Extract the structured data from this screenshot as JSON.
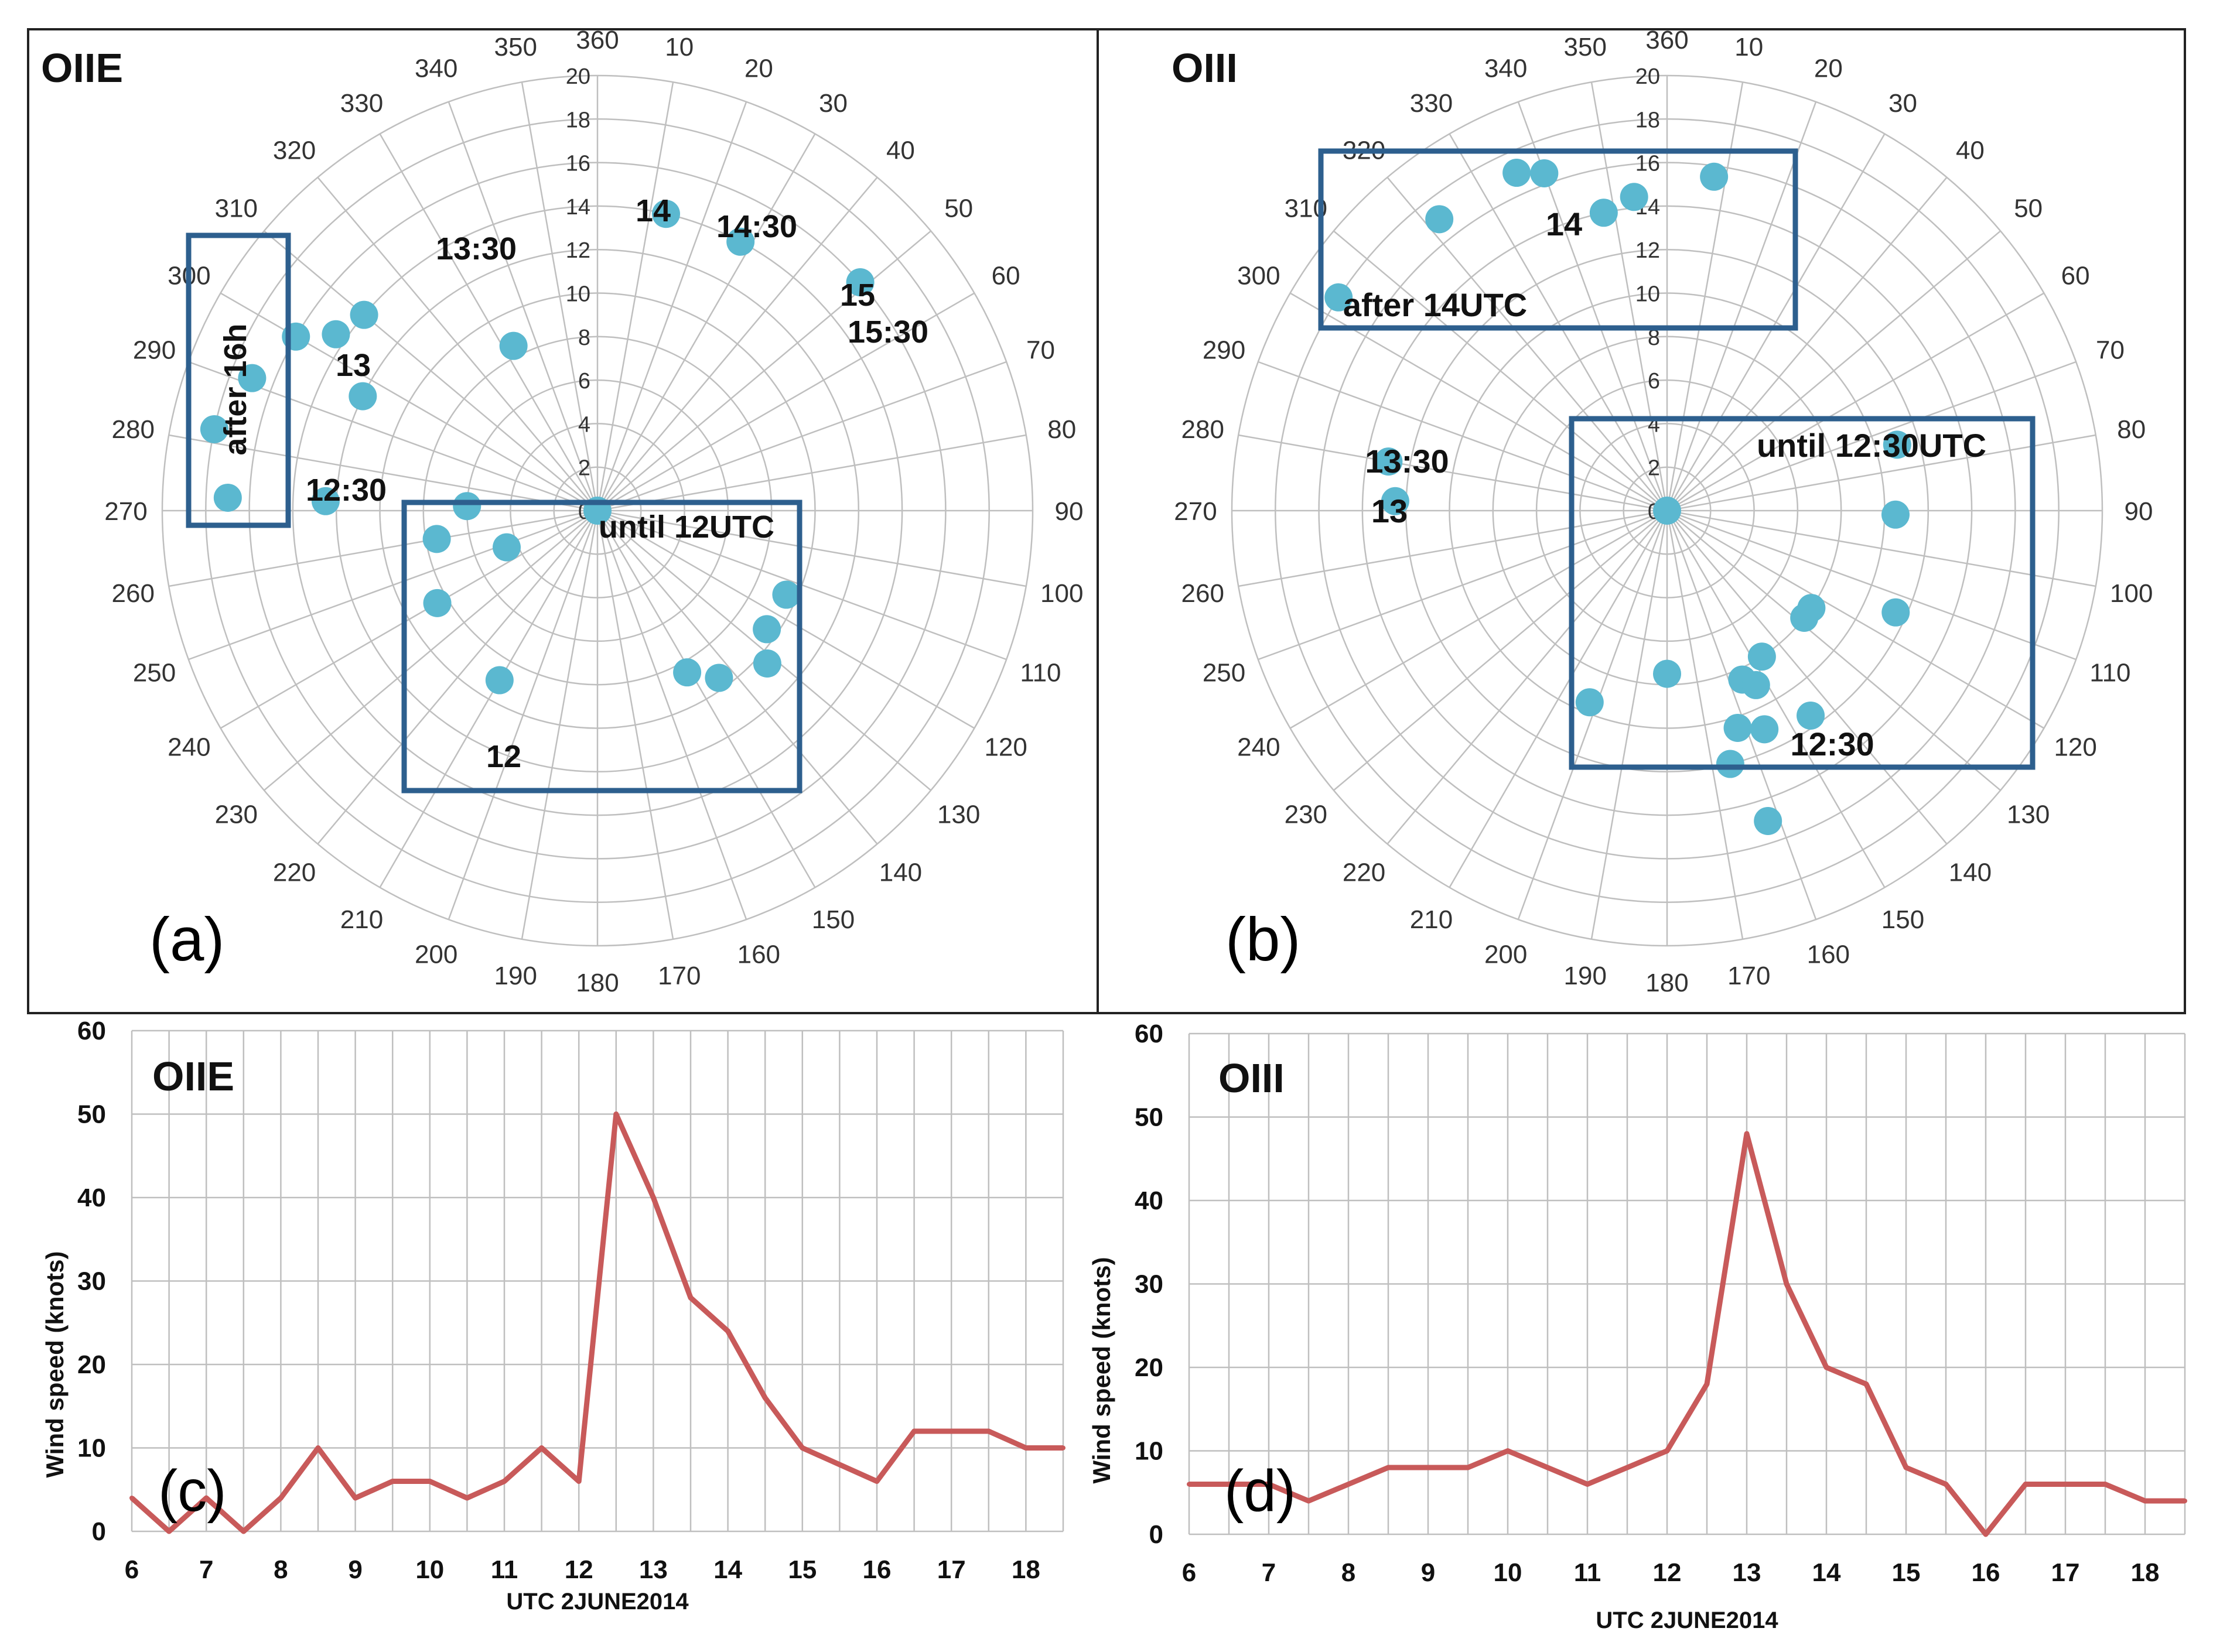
{
  "chart_data": [
    {
      "id": "a",
      "type": "scatter",
      "coordinate_system": "polar",
      "title": "OIIE",
      "panel_label": "(a)",
      "angle_ticks": [
        "360",
        "10",
        "20",
        "30",
        "40",
        "50",
        "60",
        "70",
        "80",
        "90",
        "100",
        "110",
        "120",
        "130",
        "140",
        "150",
        "160",
        "170",
        "180",
        "190",
        "200",
        "210",
        "220",
        "230",
        "240",
        "250",
        "260",
        "270",
        "280",
        "290",
        "300",
        "310",
        "320",
        "330",
        "340",
        "350"
      ],
      "radius_ticks": [
        "0",
        "2",
        "4",
        "6",
        "8",
        "10",
        "12",
        "14",
        "16",
        "18",
        "20"
      ],
      "rmax": 20,
      "points": [
        {
          "dir": 0,
          "speed": 0
        },
        {
          "dir": 13,
          "speed": 14
        },
        {
          "dir": 28,
          "speed": 14
        },
        {
          "dir": 49,
          "speed": 16
        },
        {
          "dir": 310,
          "speed": 14
        },
        {
          "dir": 300,
          "speed": 16
        },
        {
          "dir": 291,
          "speed": 17
        },
        {
          "dir": 282,
          "speed": 18
        },
        {
          "dir": 272,
          "speed": 17
        },
        {
          "dir": 304,
          "speed": 14.5
        },
        {
          "dir": 296,
          "speed": 12
        },
        {
          "dir": 272,
          "speed": 12.5
        },
        {
          "dir": 272,
          "speed": 6
        },
        {
          "dir": 260,
          "speed": 7.5
        },
        {
          "dir": 248,
          "speed": 4.5
        },
        {
          "dir": 240,
          "speed": 8.5
        },
        {
          "dir": 210,
          "speed": 9
        },
        {
          "dir": 125,
          "speed": 9.5
        },
        {
          "dir": 114,
          "speed": 9.5
        },
        {
          "dir": 132,
          "speed": 10.5
        },
        {
          "dir": 144,
          "speed": 9.5
        },
        {
          "dir": 151,
          "speed": 8.5
        },
        {
          "dir": 333,
          "speed": 8.5
        }
      ],
      "annotations": [
        "14",
        "14:30",
        "15",
        "15:30",
        "13:30",
        "13",
        "12:30",
        "after 16h",
        "until 12UTC",
        "12"
      ],
      "boxes": [
        {
          "label": "after 16h",
          "dir_range": [
            270,
            310
          ]
        },
        {
          "label": "until 12UTC",
          "dir_range": [
            100,
            270
          ]
        }
      ]
    },
    {
      "id": "b",
      "type": "scatter",
      "coordinate_system": "polar",
      "title": "OIII",
      "panel_label": "(b)",
      "angle_ticks": [
        "360",
        "10",
        "20",
        "30",
        "40",
        "50",
        "60",
        "70",
        "80",
        "90",
        "100",
        "110",
        "120",
        "130",
        "140",
        "150",
        "160",
        "170",
        "180",
        "190",
        "200",
        "210",
        "220",
        "230",
        "240",
        "250",
        "260",
        "270",
        "280",
        "290",
        "300",
        "310",
        "320",
        "330",
        "340",
        "350"
      ],
      "radius_ticks": [
        "0",
        "2",
        "4",
        "6",
        "8",
        "10",
        "12",
        "14",
        "16",
        "18",
        "20"
      ],
      "rmax": 20,
      "points": [
        {
          "dir": 0,
          "speed": 0
        },
        {
          "dir": 8,
          "speed": 15.5
        },
        {
          "dir": 354,
          "speed": 14.5
        },
        {
          "dir": 348,
          "speed": 14
        },
        {
          "dir": 340,
          "speed": 16.5
        },
        {
          "dir": 336,
          "speed": 17
        },
        {
          "dir": 322,
          "speed": 17
        },
        {
          "dir": 303,
          "speed": 18
        },
        {
          "dir": 280,
          "speed": 13
        },
        {
          "dir": 272,
          "speed": 12.5
        },
        {
          "dir": 74,
          "speed": 11
        },
        {
          "dir": 91,
          "speed": 10.5
        },
        {
          "dir": 124,
          "speed": 8
        },
        {
          "dir": 128,
          "speed": 8
        },
        {
          "dir": 147,
          "speed": 8
        },
        {
          "dir": 156,
          "speed": 8.5
        },
        {
          "dir": 153,
          "speed": 9
        },
        {
          "dir": 114,
          "speed": 11.5
        },
        {
          "dir": 156,
          "speed": 11
        },
        {
          "dir": 162,
          "speed": 10.5
        },
        {
          "dir": 166,
          "speed": 12
        },
        {
          "dir": 180,
          "speed": 7.5
        },
        {
          "dir": 202,
          "speed": 9.5
        },
        {
          "dir": 145,
          "speed": 11.5
        },
        {
          "dir": 162,
          "speed": 15
        }
      ],
      "annotations": [
        "after 14UTC",
        "14",
        "13:30",
        "13",
        "until 12:30UTC",
        "12:30"
      ],
      "boxes": [
        {
          "label": "after 14UTC",
          "dir_range": [
            300,
            10
          ]
        },
        {
          "label": "until 12:30UTC",
          "dir_range": [
            70,
            200
          ]
        }
      ]
    },
    {
      "id": "c",
      "type": "line",
      "title": "OIIE",
      "panel_label": "(c)",
      "xlabel": "UTC 2JUNE2014",
      "ylabel": "Wind speed (knots)",
      "xlim": [
        6,
        18.5
      ],
      "ylim": [
        0,
        60
      ],
      "x_ticks": [
        "6",
        "7",
        "8",
        "9",
        "10",
        "11",
        "12",
        "13",
        "14",
        "15",
        "16",
        "17",
        "18"
      ],
      "y_ticks": [
        "0",
        "10",
        "20",
        "30",
        "40",
        "50",
        "60"
      ],
      "x": [
        6,
        6.5,
        7,
        7.5,
        8,
        8.5,
        9,
        9.5,
        10,
        10.5,
        11,
        11.5,
        12,
        12.5,
        13,
        13.5,
        14,
        14.5,
        15,
        15.5,
        16,
        16.5,
        17,
        17.5,
        18,
        18.5
      ],
      "values": [
        4,
        0,
        4,
        0,
        4,
        10,
        4,
        6,
        6,
        4,
        6,
        10,
        6,
        50,
        40,
        28,
        24,
        16,
        10,
        8,
        6,
        12,
        12,
        12,
        10,
        10
      ]
    },
    {
      "id": "d",
      "type": "line",
      "title": "OIII",
      "panel_label": "(d)",
      "xlabel": "UTC 2JUNE2014",
      "ylabel": "Wind speed (knots)",
      "xlim": [
        6,
        18.5
      ],
      "ylim": [
        0,
        60
      ],
      "x_ticks": [
        "6",
        "7",
        "8",
        "9",
        "10",
        "11",
        "12",
        "13",
        "14",
        "15",
        "16",
        "17",
        "18"
      ],
      "y_ticks": [
        "0",
        "10",
        "20",
        "30",
        "40",
        "50",
        "60"
      ],
      "x": [
        6,
        6.5,
        7,
        7.5,
        8,
        8.5,
        9,
        9.5,
        10,
        10.5,
        11,
        11.5,
        12,
        12.5,
        13,
        13.5,
        14,
        14.5,
        15,
        15.5,
        16,
        16.5,
        17,
        17.5,
        18,
        18.5
      ],
      "values": [
        6,
        6,
        6,
        4,
        6,
        8,
        8,
        8,
        10,
        8,
        6,
        8,
        10,
        18,
        48,
        30,
        20,
        18,
        8,
        6,
        0,
        6,
        6,
        6,
        4,
        4
      ]
    }
  ],
  "colors": {
    "point": "#5bb8d0",
    "box": "#2d5f8e",
    "line": "#c85a5a",
    "grid": "#bfbfbf"
  }
}
